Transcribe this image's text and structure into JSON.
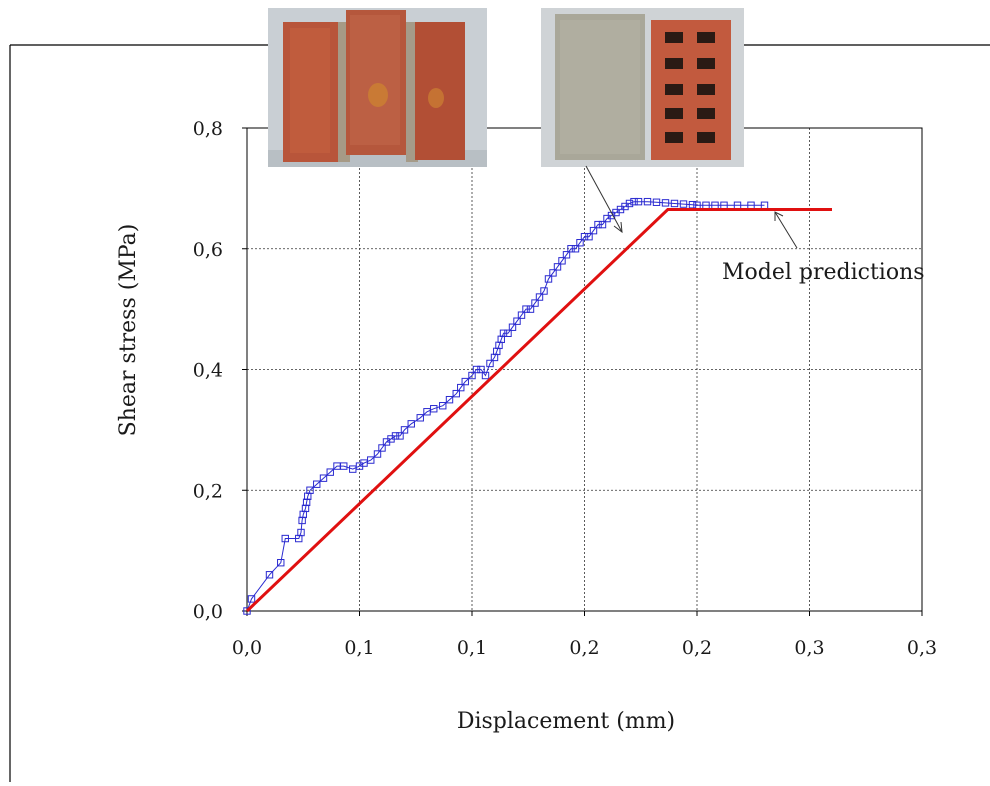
{
  "chart_data": {
    "type": "line",
    "title": "",
    "xlabel": "Displacement (mm)",
    "ylabel": "Shear stress (MPa)",
    "x_tick_labels": [
      "0,0",
      "0,1",
      "0,1",
      "0,2",
      "0,2",
      "0,3",
      "0,3"
    ],
    "y_tick_labels": [
      "0,0",
      "0,2",
      "0,4",
      "0,6",
      "0,8"
    ],
    "xlim": [
      0,
      0.3
    ],
    "ylim": [
      0,
      0.8
    ],
    "grid": true,
    "annotations": [
      {
        "text": "Model predictions"
      }
    ],
    "series": [
      {
        "marker": "square",
        "color": "#2a2ad0",
        "x": [
          0.0,
          0.002,
          0.01,
          0.015,
          0.017,
          0.023,
          0.024,
          0.0245,
          0.025,
          0.026,
          0.0265,
          0.027,
          0.028,
          0.031,
          0.034,
          0.037,
          0.04,
          0.043,
          0.047,
          0.05,
          0.052,
          0.055,
          0.058,
          0.06,
          0.062,
          0.064,
          0.066,
          0.068,
          0.07,
          0.073,
          0.077,
          0.08,
          0.083,
          0.087,
          0.09,
          0.093,
          0.095,
          0.097,
          0.1,
          0.102,
          0.104,
          0.106,
          0.108,
          0.11,
          0.111,
          0.112,
          0.113,
          0.114,
          0.116,
          0.118,
          0.12,
          0.122,
          0.124,
          0.126,
          0.128,
          0.13,
          0.132,
          0.134,
          0.136,
          0.138,
          0.14,
          0.142,
          0.144,
          0.146,
          0.148,
          0.15,
          0.152,
          0.154,
          0.156,
          0.158,
          0.16,
          0.162,
          0.164,
          0.166,
          0.168,
          0.17,
          0.172,
          0.174,
          0.178,
          0.182,
          0.186,
          0.19,
          0.194,
          0.198,
          0.2,
          0.204,
          0.208,
          0.212,
          0.218,
          0.224,
          0.23
        ],
        "y": [
          0.0,
          0.02,
          0.06,
          0.08,
          0.12,
          0.12,
          0.13,
          0.15,
          0.16,
          0.17,
          0.18,
          0.19,
          0.2,
          0.21,
          0.22,
          0.23,
          0.24,
          0.24,
          0.235,
          0.24,
          0.245,
          0.25,
          0.26,
          0.27,
          0.28,
          0.285,
          0.29,
          0.29,
          0.3,
          0.31,
          0.32,
          0.33,
          0.335,
          0.34,
          0.35,
          0.36,
          0.37,
          0.38,
          0.39,
          0.4,
          0.4,
          0.39,
          0.41,
          0.42,
          0.43,
          0.44,
          0.45,
          0.46,
          0.46,
          0.47,
          0.48,
          0.49,
          0.5,
          0.5,
          0.51,
          0.52,
          0.53,
          0.55,
          0.56,
          0.57,
          0.58,
          0.59,
          0.6,
          0.6,
          0.61,
          0.62,
          0.62,
          0.63,
          0.64,
          0.64,
          0.65,
          0.655,
          0.66,
          0.665,
          0.67,
          0.675,
          0.678,
          0.678,
          0.678,
          0.677,
          0.676,
          0.675,
          0.674,
          0.673,
          0.672,
          0.672,
          0.672,
          0.672,
          0.672,
          0.672,
          0.672
        ]
      },
      {
        "marker": "none",
        "color": "#e01010",
        "x": [
          0.0,
          0.187,
          0.26
        ],
        "y": [
          0.0,
          0.665,
          0.665
        ]
      }
    ]
  },
  "images": [
    {
      "description": "photo of brick shear specimen: three bricks bonded with mortar",
      "icon": "brick-specimen-photo"
    },
    {
      "description": "photo of failed specimen: mortar face and perforated brick",
      "icon": "perforated-brick-photo"
    }
  ]
}
